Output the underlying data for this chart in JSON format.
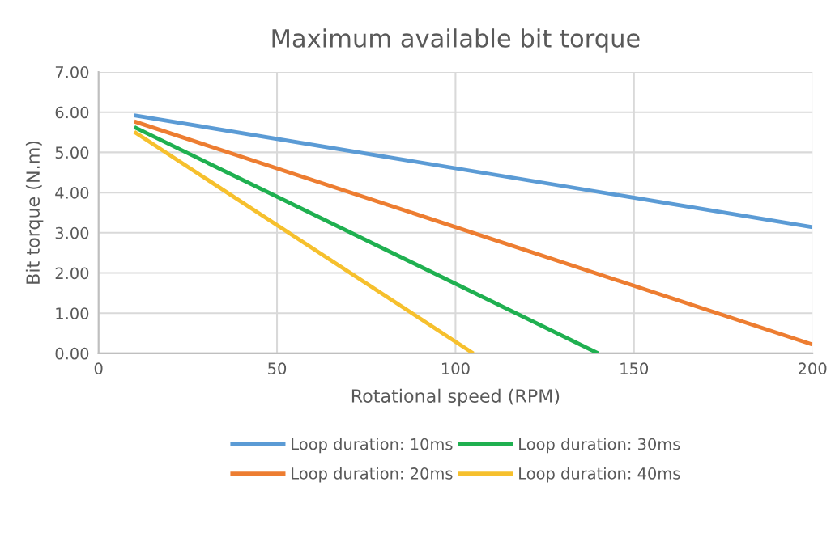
{
  "chart_data": {
    "type": "line",
    "title": "Maximum available bit torque",
    "xlabel": "Rotational speed (RPM)",
    "ylabel": "Bit torque (N.m)",
    "xlim": [
      0,
      200
    ],
    "xticks": [
      0,
      50,
      100,
      150,
      200
    ],
    "ylim": [
      0,
      7
    ],
    "yticks": [
      {
        "value": 0,
        "label": "0.00"
      },
      {
        "value": 1,
        "label": "1.00"
      },
      {
        "value": 2,
        "label": "2.00"
      },
      {
        "value": 3,
        "label": "3.00"
      },
      {
        "value": 4,
        "label": "4.00"
      },
      {
        "value": 5,
        "label": "5.00"
      },
      {
        "value": 6,
        "label": "6.00"
      },
      {
        "value": 7,
        "label": "7.00"
      }
    ],
    "grid": true,
    "legend": "bottom",
    "marker": "none",
    "line_style": "solid",
    "series": [
      {
        "name": "Loop duration: 10ms",
        "color": "#5b9bd5",
        "x": [
          10,
          200
        ],
        "values": [
          5.92,
          3.14
        ]
      },
      {
        "name": "Loop duration: 20ms",
        "color": "#ed7d31",
        "x": [
          10,
          200
        ],
        "values": [
          5.77,
          0.22
        ]
      },
      {
        "name": "Loop duration: 30ms",
        "color": "#1fb050",
        "x": [
          10,
          140
        ],
        "values": [
          5.63,
          0
        ]
      },
      {
        "name": "Loop duration: 40ms",
        "color": "#f6c02d",
        "x": [
          10,
          105
        ],
        "values": [
          5.51,
          0
        ]
      }
    ]
  }
}
